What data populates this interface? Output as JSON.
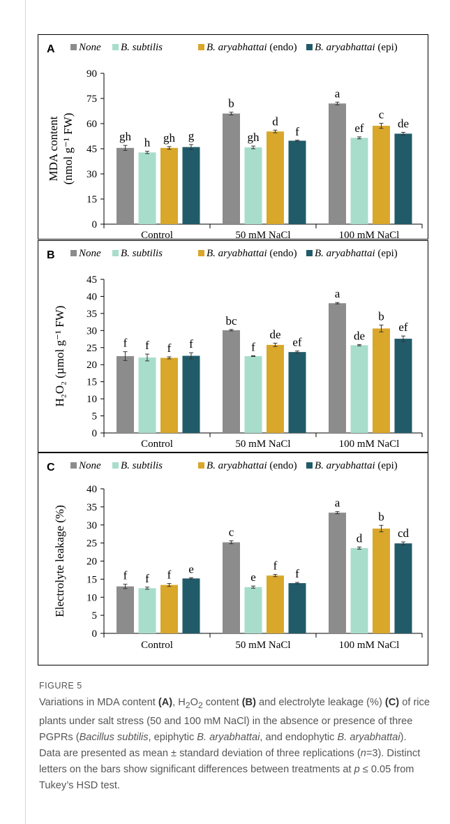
{
  "figure": {
    "label": "FIGURE 5",
    "caption_parts": [
      {
        "t": "Variations in MDA content ",
        "s": ""
      },
      {
        "t": "(A)",
        "s": "b"
      },
      {
        "t": ", H",
        "s": ""
      },
      {
        "t": "2",
        "s": "sub"
      },
      {
        "t": "O",
        "s": ""
      },
      {
        "t": "2",
        "s": "sub"
      },
      {
        "t": " content ",
        "s": ""
      },
      {
        "t": "(B)",
        "s": "b"
      },
      {
        "t": " and electrolyte leakage (%) ",
        "s": ""
      },
      {
        "t": "(C)",
        "s": "b"
      },
      {
        "t": " of rice plants under salt stress (50 and 100 mM NaCl) in the absence or presence of three PGPRs (",
        "s": ""
      },
      {
        "t": "Bacillus subtilis",
        "s": "i"
      },
      {
        "t": ", epiphytic ",
        "s": ""
      },
      {
        "t": "B. aryabhattai",
        "s": "i"
      },
      {
        "t": ", and endophytic ",
        "s": ""
      },
      {
        "t": "B. aryabhattai",
        "s": "i"
      },
      {
        "t": "). Data are presented as mean ± standard deviation of three replications (",
        "s": ""
      },
      {
        "t": "n",
        "s": "i"
      },
      {
        "t": "=3). Distinct letters on the bars show significant differences between treatments at ",
        "s": ""
      },
      {
        "t": "p",
        "s": "i"
      },
      {
        "t": " ≤ 0.05 from Tukey’s HSD test.",
        "s": ""
      }
    ]
  },
  "legend": [
    {
      "name": "None",
      "italic_part": "None",
      "suffix": "",
      "color": "#8c8c8c"
    },
    {
      "name": "B. subtilis",
      "italic_part": "B. subtilis",
      "suffix": "",
      "color": "#a8ddcb"
    },
    {
      "name": "B. aryabhattai (endo)",
      "italic_part": "B. aryabhattai",
      "suffix": " (endo)",
      "color": "#d9a72a"
    },
    {
      "name": "B. aryabhattai (epi)",
      "italic_part": "B. aryabhattai",
      "suffix": " (epi)",
      "color": "#215b69"
    }
  ],
  "chart_data": [
    {
      "panel": "A",
      "type": "bar",
      "ylabel_lines": [
        "MDA content",
        "(nmol g⁻¹ FW)"
      ],
      "categories": [
        "Control",
        "50 mM NaCl",
        "100 mM NaCl"
      ],
      "ylim": [
        0,
        90
      ],
      "yticks": [
        0,
        15,
        30,
        45,
        60,
        75,
        90
      ],
      "series": [
        {
          "name": "None",
          "values": [
            45.5,
            66.0,
            72.0
          ],
          "errors": [
            1.5,
            0.8,
            0.8
          ],
          "letters": [
            "gh",
            "b",
            "a"
          ]
        },
        {
          "name": "B. subtilis",
          "values": [
            42.8,
            45.8,
            51.5
          ],
          "errors": [
            0.7,
            0.8,
            0.6
          ],
          "letters": [
            "h",
            "gh",
            "ef"
          ]
        },
        {
          "name": "B. aryabhattai (endo)",
          "values": [
            45.5,
            55.3,
            58.7
          ],
          "errors": [
            0.8,
            0.8,
            1.5
          ],
          "letters": [
            "gh",
            "d",
            "c"
          ]
        },
        {
          "name": "B. aryabhattai (epi)",
          "values": [
            46.0,
            49.8,
            54.0
          ],
          "errors": [
            1.5,
            0.3,
            0.8
          ],
          "letters": [
            "g",
            "f",
            "de"
          ]
        }
      ]
    },
    {
      "panel": "B",
      "type": "bar",
      "ylabel_lines": [
        "H₂O₂ (µmol g⁻¹ FW)"
      ],
      "categories": [
        "Control",
        "50 mM NaCl",
        "100 mM NaCl"
      ],
      "ylim": [
        0,
        45
      ],
      "yticks": [
        0,
        5,
        10,
        15,
        20,
        25,
        30,
        35,
        40,
        45
      ],
      "series": [
        {
          "name": "None",
          "values": [
            22.5,
            30.1,
            38.0
          ],
          "errors": [
            1.3,
            0.2,
            0.2
          ],
          "letters": [
            "f",
            "bc",
            "a"
          ]
        },
        {
          "name": "B. subtilis",
          "values": [
            22.1,
            22.5,
            25.7
          ],
          "errors": [
            1.0,
            0.1,
            0.2
          ],
          "letters": [
            "f",
            "f",
            "de"
          ]
        },
        {
          "name": "B. aryabhattai (endo)",
          "values": [
            22.0,
            25.8,
            30.6
          ],
          "errors": [
            0.3,
            0.5,
            1.0
          ],
          "letters": [
            "f",
            "de",
            "b"
          ]
        },
        {
          "name": "B. aryabhattai (epi)",
          "values": [
            22.6,
            23.7,
            27.6
          ],
          "errors": [
            0.9,
            0.3,
            0.8
          ],
          "letters": [
            "f",
            "ef",
            "ef"
          ]
        }
      ]
    },
    {
      "panel": "C",
      "type": "bar",
      "ylabel_lines": [
        "Electrolyte leakage (%)"
      ],
      "categories": [
        "Control",
        "50 mM NaCl",
        "100 mM NaCl"
      ],
      "ylim": [
        0,
        40
      ],
      "yticks": [
        0,
        5,
        10,
        15,
        20,
        25,
        30,
        35,
        40
      ],
      "series": [
        {
          "name": "None",
          "values": [
            13.0,
            25.2,
            33.4
          ],
          "errors": [
            0.6,
            0.4,
            0.3
          ],
          "letters": [
            "f",
            "c",
            "a"
          ]
        },
        {
          "name": "B. subtilis",
          "values": [
            12.5,
            12.8,
            23.6
          ],
          "errors": [
            0.3,
            0.3,
            0.3
          ],
          "letters": [
            "f",
            "e",
            "d"
          ]
        },
        {
          "name": "B. aryabhattai (endo)",
          "values": [
            13.4,
            16.0,
            29.0
          ],
          "errors": [
            0.4,
            0.3,
            0.9
          ],
          "letters": [
            "f",
            "f",
            "b"
          ]
        },
        {
          "name": "B. aryabhattai (epi)",
          "values": [
            15.2,
            13.9,
            24.9
          ],
          "errors": [
            0.2,
            0.2,
            0.4
          ],
          "letters": [
            "e",
            "f",
            "cd"
          ]
        }
      ]
    }
  ]
}
